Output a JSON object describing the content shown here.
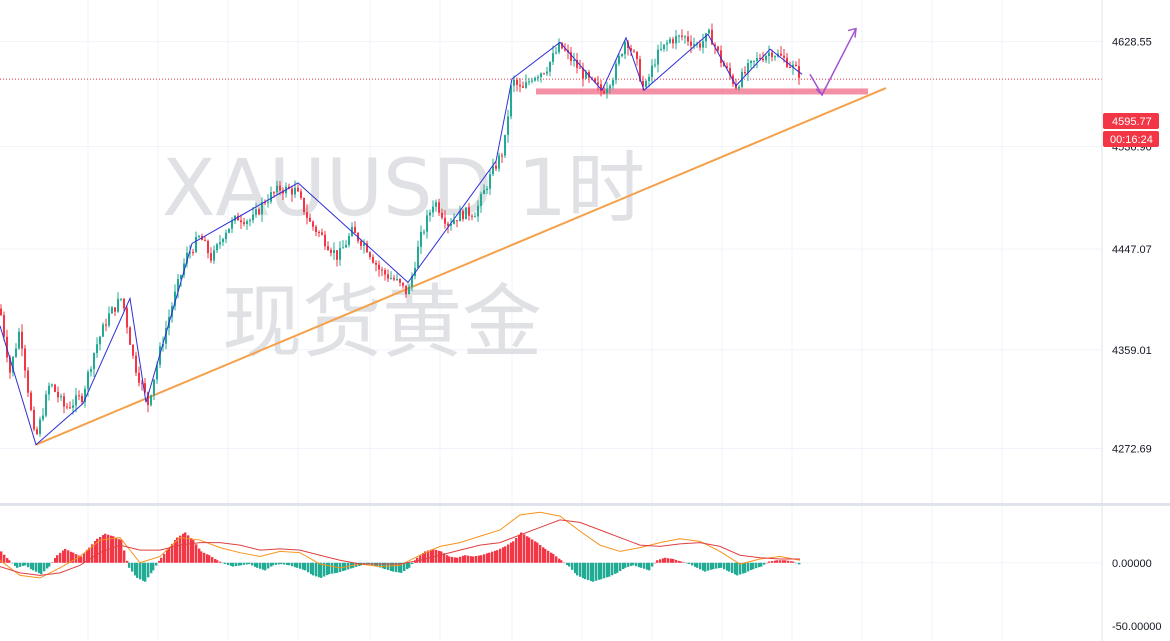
{
  "watermark": {
    "symbol": "XAUUSD 1时",
    "name": "现货黄金"
  },
  "chart_data": [
    {
      "type": "candlestick",
      "symbol": "XAUUSD",
      "timeframe": "1时",
      "ylim": [
        4225,
        4665
      ],
      "grid": true,
      "price_ticks": [
        4628.55,
        4536.9,
        4447.07,
        4359.01,
        4272.69
      ],
      "price_tick_labels": [
        "4628.55",
        "4536.90",
        "4447.07",
        "4359.01",
        "4272.69"
      ],
      "last_price": 4595.77,
      "last_price_label": "4595.77",
      "countdown_label": "00:16:24",
      "colors": {
        "up": "#22ab94",
        "down": "#f23645",
        "last_price": "#f23645",
        "zigzag": "#2f2fd6",
        "trendline": "#f5a04a",
        "support": "#f06b88",
        "arrow": "#a255cf"
      },
      "price_path": [
        [
          0,
          4395
        ],
        [
          10,
          4340
        ],
        [
          20,
          4378
        ],
        [
          35,
          4278
        ],
        [
          50,
          4330
        ],
        [
          65,
          4308
        ],
        [
          82,
          4318
        ],
        [
          95,
          4360
        ],
        [
          108,
          4388
        ],
        [
          122,
          4405
        ],
        [
          134,
          4348
        ],
        [
          148,
          4312
        ],
        [
          160,
          4358
        ],
        [
          172,
          4398
        ],
        [
          186,
          4440
        ],
        [
          200,
          4458
        ],
        [
          212,
          4438
        ],
        [
          224,
          4462
        ],
        [
          238,
          4475
        ],
        [
          252,
          4472
        ],
        [
          265,
          4490
        ],
        [
          280,
          4500
        ],
        [
          296,
          4498
        ],
        [
          310,
          4470
        ],
        [
          322,
          4458
        ],
        [
          338,
          4440
        ],
        [
          352,
          4462
        ],
        [
          366,
          4450
        ],
        [
          380,
          4428
        ],
        [
          395,
          4420
        ],
        [
          408,
          4408
        ],
        [
          420,
          4455
        ],
        [
          434,
          4490
        ],
        [
          448,
          4470
        ],
        [
          462,
          4478
        ],
        [
          476,
          4480
        ],
        [
          490,
          4510
        ],
        [
          504,
          4535
        ],
        [
          512,
          4595
        ],
        [
          522,
          4585
        ],
        [
          532,
          4598
        ],
        [
          546,
          4605
        ],
        [
          560,
          4625
        ],
        [
          574,
          4610
        ],
        [
          588,
          4595
        ],
        [
          602,
          4585
        ],
        [
          614,
          4600
        ],
        [
          626,
          4632
        ],
        [
          636,
          4612
        ],
        [
          644,
          4585
        ],
        [
          656,
          4615
        ],
        [
          670,
          4630
        ],
        [
          684,
          4633
        ],
        [
          698,
          4625
        ],
        [
          710,
          4635
        ],
        [
          722,
          4610
        ],
        [
          736,
          4590
        ],
        [
          748,
          4605
        ],
        [
          760,
          4615
        ],
        [
          772,
          4620
        ],
        [
          786,
          4612
        ],
        [
          800,
          4600
        ]
      ],
      "zigzag": [
        [
          0,
          4380
        ],
        [
          36,
          4276
        ],
        [
          83,
          4312
        ],
        [
          130,
          4404
        ],
        [
          146,
          4313
        ],
        [
          192,
          4452
        ],
        [
          298,
          4505
        ],
        [
          408,
          4418
        ],
        [
          496,
          4524
        ],
        [
          512,
          4596
        ],
        [
          560,
          4628
        ],
        [
          602,
          4586
        ],
        [
          626,
          4632
        ],
        [
          644,
          4586
        ],
        [
          708,
          4635
        ],
        [
          736,
          4590
        ],
        [
          770,
          4622
        ],
        [
          802,
          4600
        ]
      ],
      "trendline": [
        [
          36,
          4276
        ],
        [
          886,
          4588
        ]
      ],
      "support_zone": {
        "x": [
          536,
          868
        ],
        "price": 4585
      },
      "forecast_arrow": [
        [
          810,
          4600
        ],
        [
          822,
          4582
        ],
        [
          856,
          4640
        ]
      ]
    },
    {
      "type": "macd",
      "ylim": [
        -62,
        45
      ],
      "ticks": [
        0,
        -50
      ],
      "tick_labels": [
        "0.00000",
        "-50.00000"
      ],
      "colors": {
        "hist_up": "#f23645",
        "hist_down": "#22ab94",
        "macd_line": "#f7931a",
        "signal_line": "#e04040"
      },
      "histogram": [
        [
          0,
          9
        ],
        [
          8,
          2
        ],
        [
          16,
          -4
        ],
        [
          24,
          -2
        ],
        [
          32,
          -6
        ],
        [
          40,
          -9
        ],
        [
          48,
          -3
        ],
        [
          56,
          6
        ],
        [
          64,
          11
        ],
        [
          72,
          8
        ],
        [
          80,
          5
        ],
        [
          88,
          12
        ],
        [
          96,
          19
        ],
        [
          104,
          23
        ],
        [
          112,
          21
        ],
        [
          120,
          18
        ],
        [
          128,
          -4
        ],
        [
          136,
          -12
        ],
        [
          144,
          -15
        ],
        [
          152,
          -6
        ],
        [
          160,
          4
        ],
        [
          168,
          12
        ],
        [
          176,
          20
        ],
        [
          184,
          24
        ],
        [
          192,
          18
        ],
        [
          200,
          9
        ],
        [
          208,
          6
        ],
        [
          216,
          2
        ],
        [
          224,
          -1
        ],
        [
          232,
          -3
        ],
        [
          240,
          -2
        ],
        [
          248,
          -1
        ],
        [
          256,
          -4
        ],
        [
          264,
          -6
        ],
        [
          272,
          -2
        ],
        [
          280,
          -1
        ],
        [
          288,
          -2
        ],
        [
          296,
          -4
        ],
        [
          304,
          -6
        ],
        [
          312,
          -10
        ],
        [
          320,
          -12
        ],
        [
          328,
          -9
        ],
        [
          336,
          -8
        ],
        [
          344,
          -6
        ],
        [
          352,
          -4
        ],
        [
          360,
          -2
        ],
        [
          368,
          -1
        ],
        [
          376,
          -3
        ],
        [
          384,
          -5
        ],
        [
          392,
          -7
        ],
        [
          400,
          -8
        ],
        [
          408,
          -4
        ],
        [
          416,
          4
        ],
        [
          424,
          9
        ],
        [
          432,
          11
        ],
        [
          440,
          9
        ],
        [
          448,
          5
        ],
        [
          456,
          4
        ],
        [
          464,
          6
        ],
        [
          472,
          5
        ],
        [
          480,
          6
        ],
        [
          488,
          8
        ],
        [
          496,
          10
        ],
        [
          504,
          13
        ],
        [
          512,
          17
        ],
        [
          520,
          24
        ],
        [
          528,
          20
        ],
        [
          536,
          16
        ],
        [
          544,
          11
        ],
        [
          552,
          7
        ],
        [
          560,
          2
        ],
        [
          568,
          -3
        ],
        [
          576,
          -10
        ],
        [
          584,
          -13
        ],
        [
          592,
          -15
        ],
        [
          600,
          -13
        ],
        [
          608,
          -11
        ],
        [
          616,
          -8
        ],
        [
          624,
          -4
        ],
        [
          632,
          -2
        ],
        [
          640,
          -4
        ],
        [
          648,
          -6
        ],
        [
          656,
          2
        ],
        [
          664,
          4
        ],
        [
          672,
          3
        ],
        [
          680,
          1
        ],
        [
          688,
          -1
        ],
        [
          696,
          -4
        ],
        [
          704,
          -7
        ],
        [
          712,
          -5
        ],
        [
          720,
          -4
        ],
        [
          728,
          -7
        ],
        [
          736,
          -10
        ],
        [
          744,
          -8
        ],
        [
          752,
          -5
        ],
        [
          760,
          -3
        ],
        [
          768,
          1
        ],
        [
          776,
          2
        ],
        [
          784,
          2
        ],
        [
          792,
          1
        ],
        [
          800,
          -2
        ]
      ],
      "macd_line": [
        [
          0,
          2
        ],
        [
          20,
          -10
        ],
        [
          40,
          -12
        ],
        [
          60,
          -4
        ],
        [
          80,
          5
        ],
        [
          100,
          18
        ],
        [
          120,
          20
        ],
        [
          140,
          0
        ],
        [
          160,
          5
        ],
        [
          180,
          20
        ],
        [
          200,
          18
        ],
        [
          220,
          12
        ],
        [
          240,
          8
        ],
        [
          260,
          5
        ],
        [
          280,
          9
        ],
        [
          300,
          8
        ],
        [
          320,
          -1
        ],
        [
          340,
          -4
        ],
        [
          360,
          -1
        ],
        [
          380,
          -3
        ],
        [
          400,
          -2
        ],
        [
          420,
          6
        ],
        [
          440,
          13
        ],
        [
          460,
          16
        ],
        [
          480,
          21
        ],
        [
          500,
          26
        ],
        [
          520,
          38
        ],
        [
          540,
          40
        ],
        [
          560,
          37
        ],
        [
          580,
          25
        ],
        [
          600,
          14
        ],
        [
          620,
          9
        ],
        [
          640,
          12
        ],
        [
          660,
          16
        ],
        [
          680,
          19
        ],
        [
          700,
          17
        ],
        [
          720,
          9
        ],
        [
          740,
          -1
        ],
        [
          760,
          3
        ],
        [
          780,
          5
        ],
        [
          800,
          2
        ]
      ],
      "signal_line": [
        [
          0,
          -3
        ],
        [
          20,
          -8
        ],
        [
          40,
          -10
        ],
        [
          60,
          -8
        ],
        [
          80,
          -2
        ],
        [
          100,
          8
        ],
        [
          120,
          14
        ],
        [
          140,
          10
        ],
        [
          160,
          10
        ],
        [
          180,
          14
        ],
        [
          200,
          16
        ],
        [
          220,
          16
        ],
        [
          240,
          14
        ],
        [
          260,
          10
        ],
        [
          280,
          11
        ],
        [
          300,
          10
        ],
        [
          320,
          6
        ],
        [
          340,
          2
        ],
        [
          360,
          -1
        ],
        [
          380,
          -1
        ],
        [
          400,
          -1
        ],
        [
          420,
          2
        ],
        [
          440,
          6
        ],
        [
          460,
          10
        ],
        [
          480,
          14
        ],
        [
          500,
          16
        ],
        [
          520,
          22
        ],
        [
          540,
          28
        ],
        [
          560,
          34
        ],
        [
          580,
          32
        ],
        [
          600,
          26
        ],
        [
          620,
          20
        ],
        [
          640,
          14
        ],
        [
          660,
          13
        ],
        [
          680,
          15
        ],
        [
          700,
          16
        ],
        [
          720,
          13
        ],
        [
          740,
          6
        ],
        [
          760,
          4
        ],
        [
          780,
          3
        ],
        [
          800,
          3
        ]
      ]
    }
  ]
}
